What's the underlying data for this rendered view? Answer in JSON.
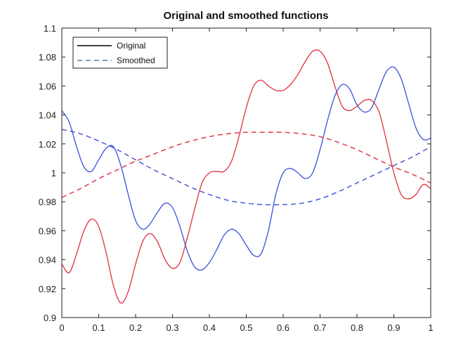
{
  "chart_data": {
    "type": "line",
    "title": "Original and smoothed functions",
    "xlabel": "",
    "ylabel": "",
    "xlim": [
      0,
      1
    ],
    "ylim": [
      0.9,
      1.1
    ],
    "xticks": [
      0,
      0.1,
      0.2,
      0.3,
      0.4,
      0.5,
      0.6,
      0.7,
      0.8,
      0.9,
      1
    ],
    "xtick_labels": [
      "0",
      "0.1",
      "0.2",
      "0.3",
      "0.4",
      "0.5",
      "0.6",
      "0.7",
      "0.8",
      "0.9",
      "1"
    ],
    "yticks": [
      0.9,
      0.92,
      0.94,
      0.96,
      0.98,
      1,
      1.02,
      1.04,
      1.06,
      1.08,
      1.1
    ],
    "ytick_labels": [
      "0.9",
      "0.92",
      "0.94",
      "0.96",
      "0.98",
      "1",
      "1.02",
      "1.04",
      "1.06",
      "1.08",
      "1.1"
    ],
    "grid": false,
    "legend": {
      "location": "top-left",
      "entries": [
        {
          "label": "Original",
          "style": "solid",
          "color": "#000000"
        },
        {
          "label": "Smoothed",
          "style": "dashed",
          "color": "#5577aa"
        }
      ]
    },
    "series": [
      {
        "kind": "original",
        "style": "solid",
        "color": "#e0303c",
        "x": [
          0,
          0.02,
          0.04,
          0.06,
          0.08,
          0.1,
          0.12,
          0.14,
          0.16,
          0.18,
          0.2,
          0.22,
          0.24,
          0.26,
          0.28,
          0.3,
          0.32,
          0.34,
          0.36,
          0.38,
          0.4,
          0.42,
          0.44,
          0.46,
          0.48,
          0.5,
          0.52,
          0.54,
          0.56,
          0.58,
          0.6,
          0.62,
          0.64,
          0.66,
          0.68,
          0.7,
          0.72,
          0.74,
          0.76,
          0.78,
          0.8,
          0.82,
          0.84,
          0.86,
          0.88,
          0.9,
          0.92,
          0.94,
          0.96,
          0.98,
          1
        ],
        "y": [
          0.937,
          0.931,
          0.944,
          0.96,
          0.968,
          0.963,
          0.945,
          0.922,
          0.91,
          0.918,
          0.937,
          0.953,
          0.958,
          0.952,
          0.94,
          0.934,
          0.938,
          0.955,
          0.975,
          0.993,
          1.0,
          1.001,
          1.001,
          1.008,
          1.025,
          1.045,
          1.06,
          1.064,
          1.06,
          1.057,
          1.057,
          1.061,
          1.068,
          1.077,
          1.084,
          1.084,
          1.076,
          1.06,
          1.046,
          1.043,
          1.046,
          1.05,
          1.05,
          1.042,
          1.022,
          1.0,
          0.985,
          0.982,
          0.985,
          0.992,
          0.989
        ]
      },
      {
        "kind": "original",
        "style": "solid",
        "color": "#3a50d8",
        "x": [
          0,
          0.02,
          0.04,
          0.06,
          0.08,
          0.1,
          0.12,
          0.14,
          0.16,
          0.18,
          0.2,
          0.22,
          0.24,
          0.26,
          0.28,
          0.3,
          0.32,
          0.34,
          0.36,
          0.38,
          0.4,
          0.42,
          0.44,
          0.46,
          0.48,
          0.5,
          0.52,
          0.54,
          0.56,
          0.58,
          0.6,
          0.62,
          0.64,
          0.66,
          0.68,
          0.7,
          0.72,
          0.74,
          0.76,
          0.78,
          0.8,
          0.82,
          0.84,
          0.86,
          0.88,
          0.9,
          0.92,
          0.94,
          0.96,
          0.98,
          1
        ],
        "y": [
          1.043,
          1.035,
          1.018,
          1.004,
          1.001,
          1.009,
          1.017,
          1.018,
          1.005,
          0.985,
          0.967,
          0.961,
          0.965,
          0.973,
          0.979,
          0.976,
          0.963,
          0.946,
          0.935,
          0.933,
          0.938,
          0.947,
          0.957,
          0.961,
          0.958,
          0.95,
          0.943,
          0.944,
          0.96,
          0.985,
          1.0,
          1.003,
          1.0,
          0.996,
          1.0,
          1.016,
          1.036,
          1.053,
          1.061,
          1.058,
          1.047,
          1.042,
          1.045,
          1.058,
          1.07,
          1.073,
          1.065,
          1.048,
          1.031,
          1.023,
          1.024
        ]
      },
      {
        "kind": "smoothed",
        "style": "dashed",
        "color": "#e0303c",
        "x": [
          0,
          0.05,
          0.1,
          0.15,
          0.2,
          0.25,
          0.3,
          0.35,
          0.4,
          0.45,
          0.5,
          0.55,
          0.6,
          0.65,
          0.7,
          0.75,
          0.8,
          0.85,
          0.9,
          0.95,
          1
        ],
        "y": [
          0.983,
          0.989,
          0.996,
          1.002,
          1.008,
          1.013,
          1.018,
          1.022,
          1.025,
          1.027,
          1.028,
          1.028,
          1.028,
          1.027,
          1.025,
          1.021,
          1.016,
          1.01,
          1.004,
          0.999,
          0.993
        ]
      },
      {
        "kind": "smoothed",
        "style": "dashed",
        "color": "#3a50d8",
        "x": [
          0,
          0.05,
          0.1,
          0.15,
          0.2,
          0.25,
          0.3,
          0.35,
          0.4,
          0.45,
          0.5,
          0.55,
          0.6,
          0.65,
          0.7,
          0.75,
          0.8,
          0.85,
          0.9,
          0.95,
          1
        ],
        "y": [
          1.03,
          1.027,
          1.022,
          1.016,
          1.009,
          1.002,
          0.996,
          0.99,
          0.985,
          0.981,
          0.979,
          0.978,
          0.978,
          0.979,
          0.982,
          0.987,
          0.993,
          0.999,
          1.005,
          1.011,
          1.018
        ]
      }
    ]
  }
}
